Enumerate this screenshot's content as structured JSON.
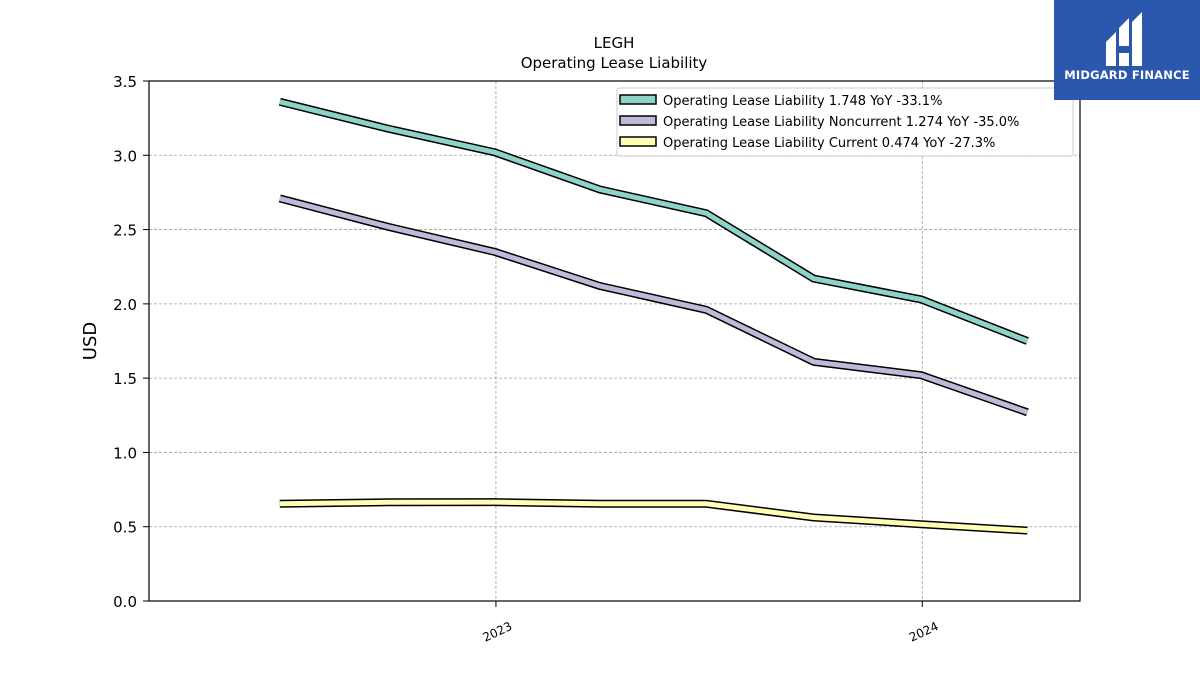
{
  "brand": {
    "name": "MIDGARD FINANCE",
    "bg_color": "#2b57ad"
  },
  "chart_data": {
    "type": "line",
    "title": "LEGH",
    "subtitle": "Operating Lease Liability",
    "xlabel": "",
    "ylabel": "USD",
    "ylim": [
      0,
      3.5
    ],
    "yticks": [
      "0.0",
      "0.5",
      "1.0",
      "1.5",
      "2.0",
      "2.5",
      "3.0",
      "3.5"
    ],
    "xlim": [
      "2022-03-10",
      "2024-05-15"
    ],
    "xticks": [
      {
        "date": "2023-01-01",
        "label": "2023"
      },
      {
        "date": "2024-01-01",
        "label": "2024"
      }
    ],
    "grid": true,
    "legend_position": "top-right",
    "x": [
      "2022-06-30",
      "2022-09-30",
      "2022-12-31",
      "2023-03-31",
      "2023-06-30",
      "2023-09-30",
      "2023-12-31",
      "2024-03-31"
    ],
    "series": [
      {
        "name": "Operating Lease Liability  1.748 YoY -33.1%",
        "color": "#8dd3c7",
        "values": [
          3.36,
          3.18,
          3.02,
          2.77,
          2.61,
          2.17,
          2.03,
          1.75
        ]
      },
      {
        "name": "Operating Lease Liability Noncurrent  1.274 YoY -35.0%",
        "color": "#bebada",
        "values": [
          2.71,
          2.52,
          2.35,
          2.12,
          1.96,
          1.61,
          1.52,
          1.27
        ]
      },
      {
        "name": "Operating Lease Liability Current  0.474 YoY -27.3%",
        "color": "#ffffb3",
        "values": [
          0.655,
          0.664,
          0.666,
          0.654,
          0.654,
          0.562,
          0.517,
          0.474
        ]
      }
    ]
  }
}
